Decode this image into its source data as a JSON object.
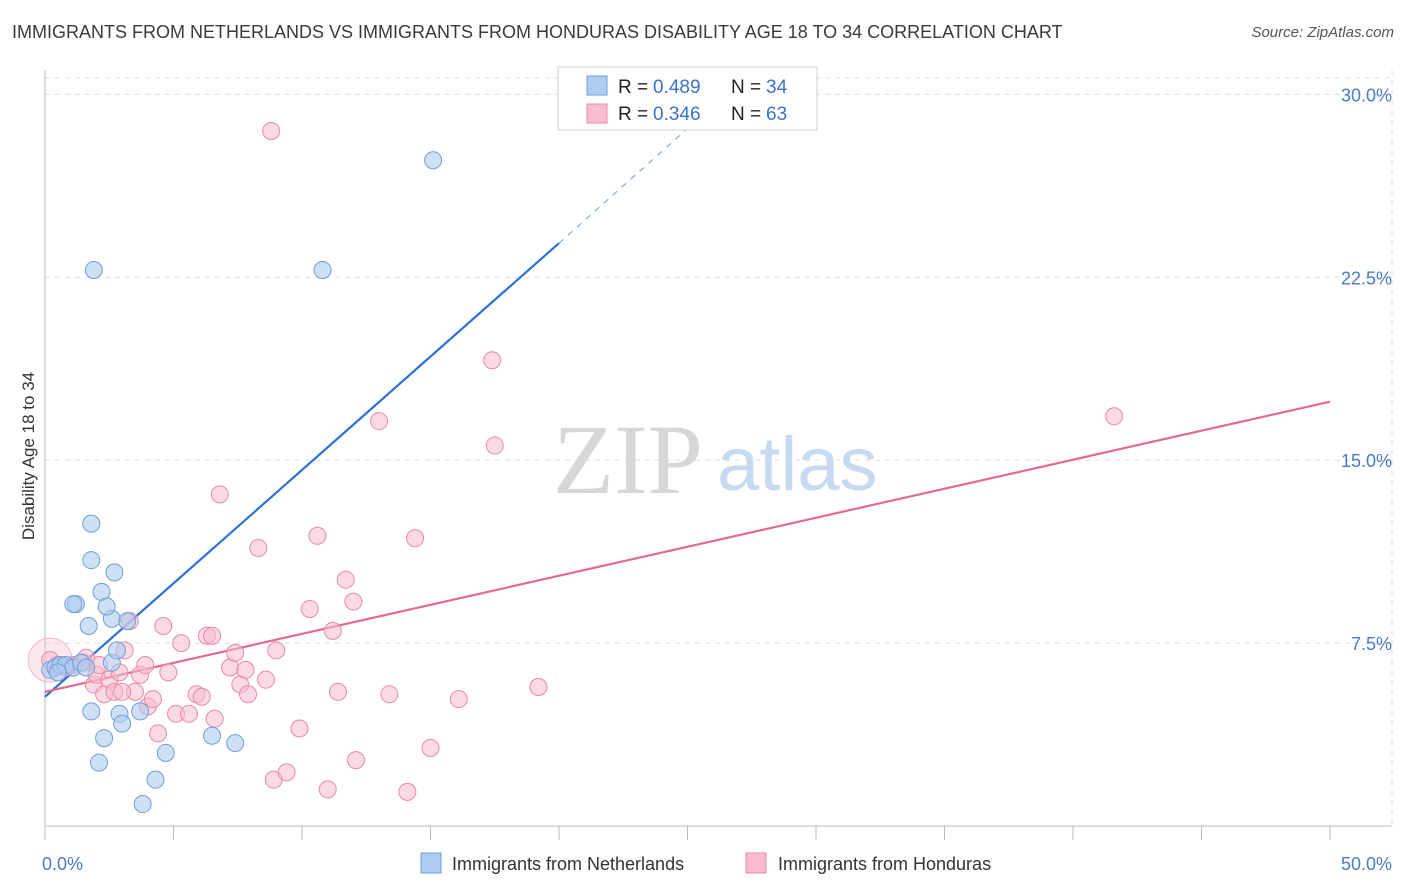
{
  "title": "IMMIGRANTS FROM NETHERLANDS VS IMMIGRANTS FROM HONDURAS DISABILITY AGE 18 TO 34 CORRELATION CHART",
  "source": "Source: ZipAtlas.com",
  "watermark": {
    "zip": "ZIP",
    "atlas": "atlas"
  },
  "colors": {
    "netherlands_fill": "#aecbf0",
    "netherlands_stroke": "#6f9fd8",
    "netherlands_line": "#2d72d2",
    "honduras_fill": "#f7bccd",
    "honduras_stroke": "#e88aa6",
    "honduras_line": "#e06b94",
    "tick_label": "#4a7cc6",
    "grid": "#dddddd"
  },
  "legend": {
    "rows": [
      {
        "r_label": "R =",
        "r_value": "0.489",
        "n_label": "N =",
        "n_value": "34"
      },
      {
        "r_label": "R =",
        "r_value": "0.346",
        "n_label": "N =",
        "n_value": "63"
      }
    ]
  },
  "chart_data": {
    "type": "scatter",
    "title": "IMMIGRANTS FROM NETHERLANDS VS IMMIGRANTS FROM HONDURAS DISABILITY AGE 18 TO 34 CORRELATION CHART",
    "xlabel": "",
    "ylabel": "Disability Age 18 to 34",
    "xlim": [
      0,
      50
    ],
    "ylim": [
      0,
      31
    ],
    "x_tick_labels": [
      "0.0%",
      "50.0%"
    ],
    "y_ticks": [
      7.5,
      15.0,
      22.5,
      30.0
    ],
    "y_tick_labels": [
      "7.5%",
      "15.0%",
      "22.5%",
      "30.0%"
    ],
    "grid": true,
    "legend_position": "top-center",
    "series": [
      {
        "name": "Immigrants from Netherlands",
        "r": 0.489,
        "n": 34,
        "trend": {
          "x": [
            0,
            20
          ],
          "y": [
            5.3,
            23.9
          ],
          "dashed_to": [
            25,
            28.6
          ]
        },
        "points": [
          [
            0.2,
            6.4
          ],
          [
            0.4,
            6.5
          ],
          [
            0.6,
            6.6
          ],
          [
            0.8,
            6.6
          ],
          [
            1.1,
            6.5
          ],
          [
            1.4,
            6.7
          ],
          [
            1.6,
            6.5
          ],
          [
            0.5,
            6.3
          ],
          [
            1.8,
            4.7
          ],
          [
            1.2,
            9.1
          ],
          [
            1.7,
            8.2
          ],
          [
            1.1,
            9.1
          ],
          [
            1.8,
            10.9
          ],
          [
            1.8,
            12.4
          ],
          [
            1.9,
            22.8
          ],
          [
            2.2,
            9.6
          ],
          [
            2.3,
            3.6
          ],
          [
            2.6,
            8.5
          ],
          [
            2.6,
            6.7
          ],
          [
            2.7,
            10.4
          ],
          [
            2.8,
            7.2
          ],
          [
            2.9,
            4.6
          ],
          [
            3.0,
            4.2
          ],
          [
            3.2,
            8.4
          ],
          [
            2.1,
            2.6
          ],
          [
            2.4,
            9.0
          ],
          [
            3.7,
            4.7
          ],
          [
            4.3,
            1.9
          ],
          [
            3.8,
            0.9
          ],
          [
            4.7,
            3.0
          ],
          [
            6.5,
            3.7
          ],
          [
            7.4,
            3.4
          ],
          [
            10.8,
            22.8
          ],
          [
            15.1,
            27.3
          ]
        ]
      },
      {
        "name": "Immigrants from Honduras",
        "r": 0.346,
        "n": 63,
        "trend": {
          "x": [
            0,
            50
          ],
          "y": [
            5.5,
            17.4
          ]
        },
        "points": [
          [
            0.2,
            6.8
          ],
          [
            0.5,
            6.6
          ],
          [
            0.8,
            6.5
          ],
          [
            1.1,
            6.6
          ],
          [
            1.5,
            6.7
          ],
          [
            1.9,
            5.8
          ],
          [
            2.0,
            6.2
          ],
          [
            2.1,
            6.6
          ],
          [
            2.3,
            5.4
          ],
          [
            2.5,
            6.0
          ],
          [
            2.7,
            5.5
          ],
          [
            2.9,
            6.3
          ],
          [
            3.1,
            7.2
          ],
          [
            3.3,
            8.4
          ],
          [
            3.5,
            5.5
          ],
          [
            3.7,
            6.2
          ],
          [
            3.9,
            6.6
          ],
          [
            4.0,
            4.9
          ],
          [
            4.2,
            5.2
          ],
          [
            4.4,
            3.8
          ],
          [
            4.6,
            8.2
          ],
          [
            4.8,
            6.3
          ],
          [
            5.1,
            4.6
          ],
          [
            5.3,
            7.5
          ],
          [
            5.6,
            4.6
          ],
          [
            5.9,
            5.4
          ],
          [
            6.1,
            5.3
          ],
          [
            6.3,
            7.8
          ],
          [
            6.5,
            7.8
          ],
          [
            6.6,
            4.4
          ],
          [
            6.8,
            13.6
          ],
          [
            7.2,
            6.5
          ],
          [
            7.4,
            7.1
          ],
          [
            7.6,
            5.8
          ],
          [
            7.8,
            6.4
          ],
          [
            7.9,
            5.4
          ],
          [
            8.3,
            11.4
          ],
          [
            8.6,
            6.0
          ],
          [
            8.9,
            1.9
          ],
          [
            9.0,
            7.2
          ],
          [
            9.4,
            2.2
          ],
          [
            9.9,
            4.0
          ],
          [
            10.3,
            8.9
          ],
          [
            10.6,
            11.9
          ],
          [
            11.0,
            1.5
          ],
          [
            11.2,
            8.0
          ],
          [
            11.4,
            5.5
          ],
          [
            11.7,
            10.1
          ],
          [
            12.0,
            9.2
          ],
          [
            12.1,
            2.7
          ],
          [
            13.0,
            16.6
          ],
          [
            13.4,
            5.4
          ],
          [
            14.1,
            1.4
          ],
          [
            14.4,
            11.8
          ],
          [
            15.0,
            3.2
          ],
          [
            16.1,
            5.2
          ],
          [
            17.4,
            19.1
          ],
          [
            17.5,
            15.6
          ],
          [
            19.2,
            5.7
          ],
          [
            8.8,
            28.5
          ],
          [
            41.6,
            16.8
          ],
          [
            3.0,
            5.5
          ],
          [
            1.6,
            6.9
          ]
        ]
      }
    ]
  }
}
